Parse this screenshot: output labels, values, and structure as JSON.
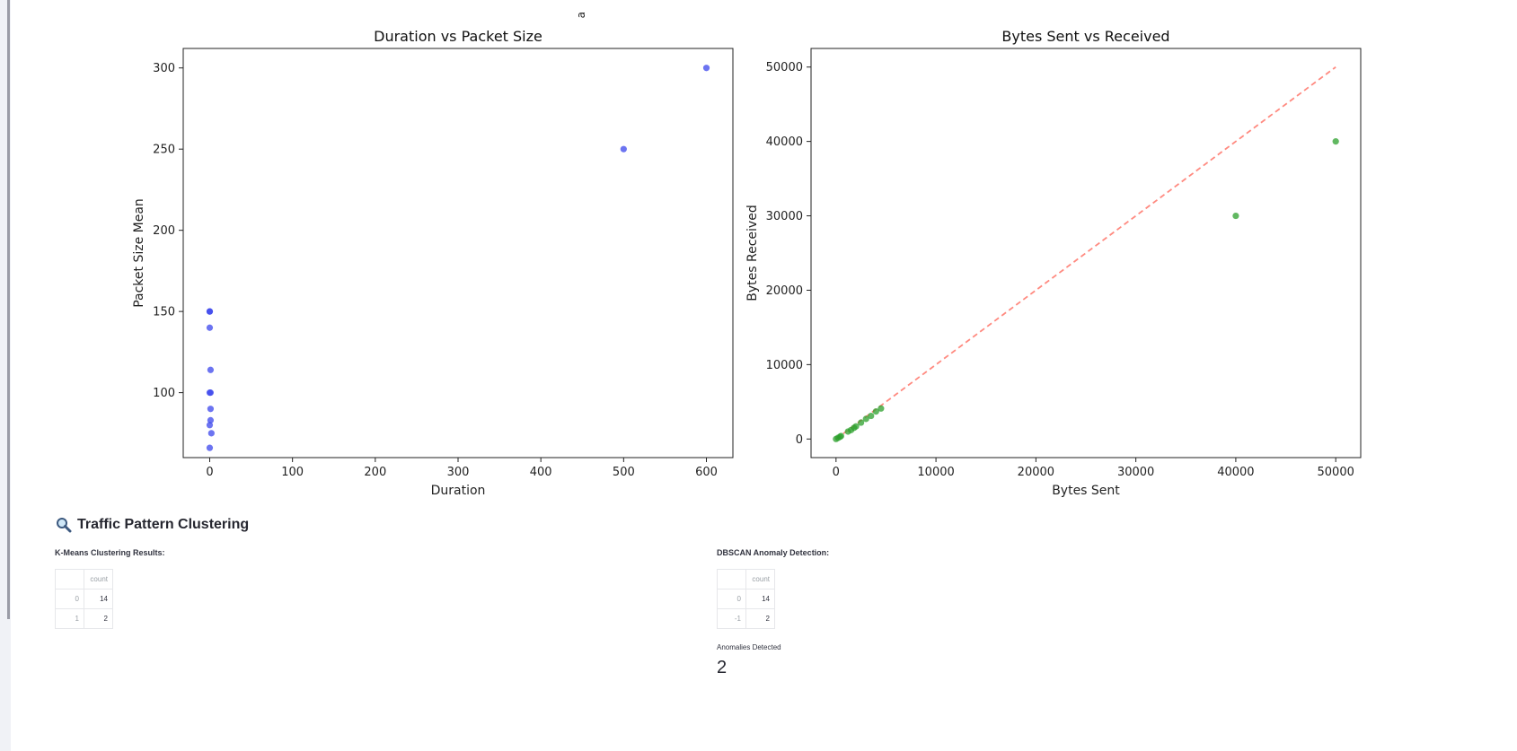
{
  "top_cut_label": "pa",
  "chart_data": [
    {
      "type": "scatter",
      "title": "Duration vs Packet Size",
      "xlabel": "Duration",
      "ylabel": "Packet Size Mean",
      "xlim": [
        -32,
        632
      ],
      "ylim": [
        60,
        312
      ],
      "xticks": [
        0,
        100,
        200,
        300,
        400,
        500,
        600
      ],
      "yticks": [
        100,
        150,
        200,
        250,
        300
      ],
      "color": "#3b46ec",
      "points": [
        [
          0,
          150
        ],
        [
          0,
          150
        ],
        [
          0,
          140
        ],
        [
          1,
          114
        ],
        [
          0,
          100
        ],
        [
          1,
          100
        ],
        [
          1,
          90
        ],
        [
          1,
          83
        ],
        [
          0,
          80
        ],
        [
          2,
          75
        ],
        [
          0,
          66
        ],
        [
          500,
          250
        ],
        [
          600,
          300
        ]
      ]
    },
    {
      "type": "scatter",
      "title": "Bytes Sent vs Received",
      "xlabel": "Bytes Sent",
      "ylabel": "Bytes Received",
      "xlim": [
        -2500,
        52500
      ],
      "ylim": [
        -2500,
        52500
      ],
      "xticks": [
        0,
        10000,
        20000,
        30000,
        40000,
        50000
      ],
      "yticks": [
        0,
        10000,
        20000,
        30000,
        40000,
        50000
      ],
      "color": "#2ca02c",
      "line_color": "#ff8a80",
      "reference_line": [
        [
          0,
          0
        ],
        [
          50000,
          50000
        ]
      ],
      "points": [
        [
          0,
          0
        ],
        [
          200,
          150
        ],
        [
          400,
          300
        ],
        [
          500,
          400
        ],
        [
          1200,
          1000
        ],
        [
          1500,
          1200
        ],
        [
          1800,
          1500
        ],
        [
          2000,
          1700
        ],
        [
          2500,
          2200
        ],
        [
          3000,
          2700
        ],
        [
          3500,
          3100
        ],
        [
          4000,
          3700
        ],
        [
          4500,
          4100
        ],
        [
          40000,
          30000
        ],
        [
          50000,
          40000
        ]
      ]
    }
  ],
  "clustering": {
    "icon": "magnifier-icon",
    "title": "Traffic Pattern Clustering",
    "kmeans_label": "K-Means Clustering Results:",
    "kmeans_header": "count",
    "kmeans_rows": [
      {
        "index": "0",
        "count": "14"
      },
      {
        "index": "1",
        "count": "2"
      }
    ],
    "dbscan_label": "DBSCAN Anomaly Detection:",
    "dbscan_header": "count",
    "dbscan_rows": [
      {
        "index": "0",
        "count": "14"
      },
      {
        "index": "-1",
        "count": "2"
      }
    ],
    "anomalies_label": "Anomalies Detected",
    "anomalies_value": "2"
  }
}
